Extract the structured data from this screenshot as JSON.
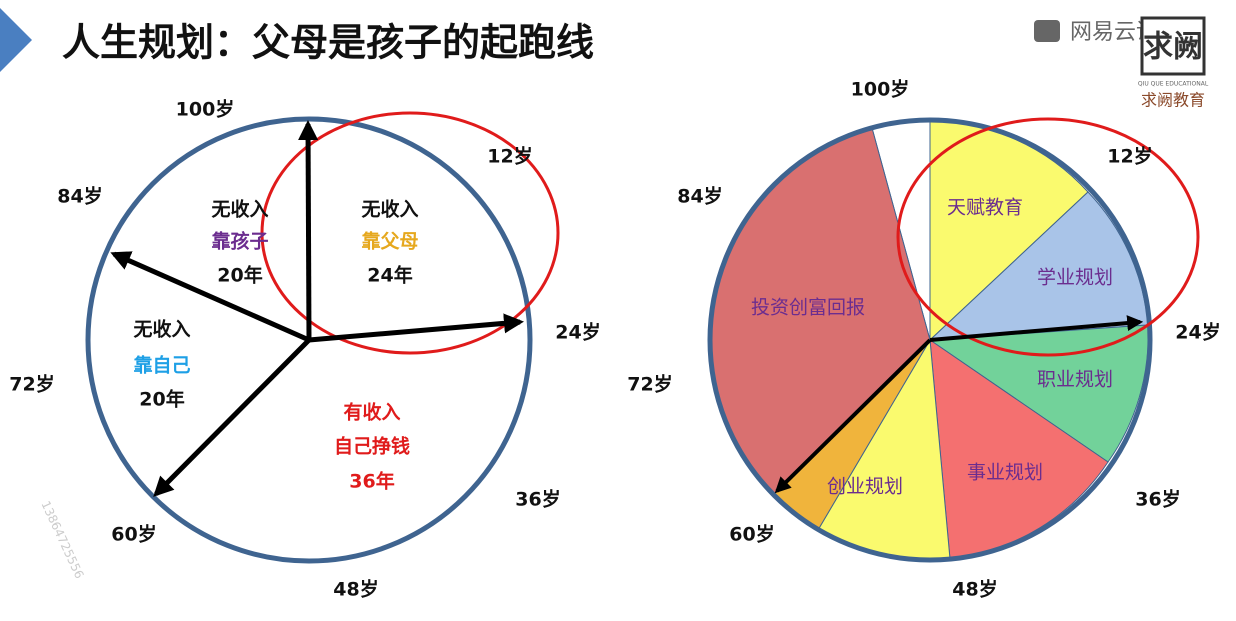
{
  "title": "人生规划：父母是孩子的起跑线",
  "logo": {
    "brand": "网易云课堂",
    "box": "求阙",
    "tagline": "QIU QUE EDUCATIONAL",
    "name": "求阙教育"
  },
  "watermark": "13864725556",
  "left_diagram": {
    "ages": [
      "100岁",
      "12岁",
      "84岁",
      "24岁",
      "72岁",
      "36岁",
      "60岁",
      "48岁"
    ],
    "segments": [
      {
        "status": "无收入",
        "source": "靠孩子",
        "years": "20年"
      },
      {
        "status": "无收入",
        "source": "靠父母",
        "years": "24年"
      },
      {
        "status": "无收入",
        "source": "靠自己",
        "years": "20年"
      },
      {
        "status": "有收入",
        "source": "自己挣钱",
        "years": "36年"
      }
    ]
  },
  "right_diagram": {
    "ages": [
      "100岁",
      "12岁",
      "84岁",
      "24岁",
      "72岁",
      "36岁",
      "60岁",
      "48岁"
    ],
    "sectors": [
      "天赋教育",
      "学业规划",
      "职业规划",
      "事业规划",
      "创业规划",
      "投资创富回报"
    ]
  }
}
